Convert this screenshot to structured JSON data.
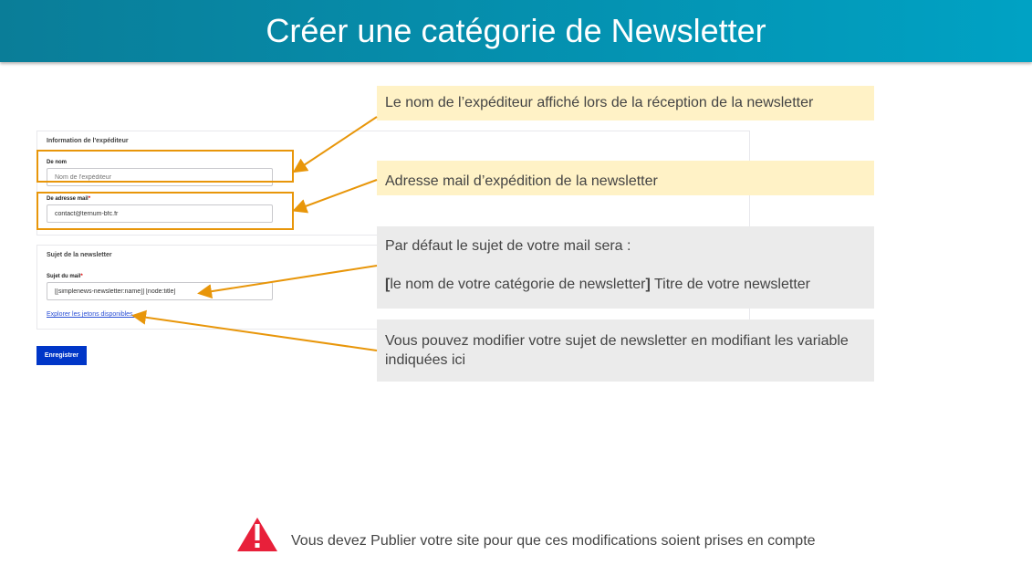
{
  "title": "Créer une catégorie de Newsletter",
  "form": {
    "sender_section": "Information de l'expéditeur",
    "name_label": "De nom",
    "name_placeholder": "Nom de l'expéditeur",
    "email_label": "De adresse mail",
    "email_value": "contact@ternum-bfc.fr",
    "subject_section": "Sujet de la newsletter",
    "subject_label": "Sujet du mail",
    "subject_value": "[[simplenews-newsletter:name]] [node:title]",
    "tokens_link": "Explorer les jetons disponibles.",
    "required_mark": "*",
    "save_label": "Enregistrer"
  },
  "callouts": {
    "name": "Le nom de l’expéditeur affiché lors de la réception de la newsletter",
    "email": "Adresse mail d’expédition de la newsletter",
    "subject_line1": "Par défaut le sujet de votre mail sera :",
    "subject_bold": "[",
    "subject_mid": "le nom de votre catégorie de newsletter",
    "subject_bold2": "]",
    "subject_end": " Titre de votre newsletter",
    "tokens": "Vous pouvez modifier votre sujet de newsletter en modifiant les variable indiquées ici"
  },
  "warning": {
    "icon": "warning-triangle-icon",
    "text": "Vous devez Publier votre site pour que ces modifications soient prises en compte"
  },
  "colors": {
    "header": "#0a7d98",
    "highlight": "#e8960a",
    "warning": "#e8203a",
    "save": "#0036c8"
  }
}
